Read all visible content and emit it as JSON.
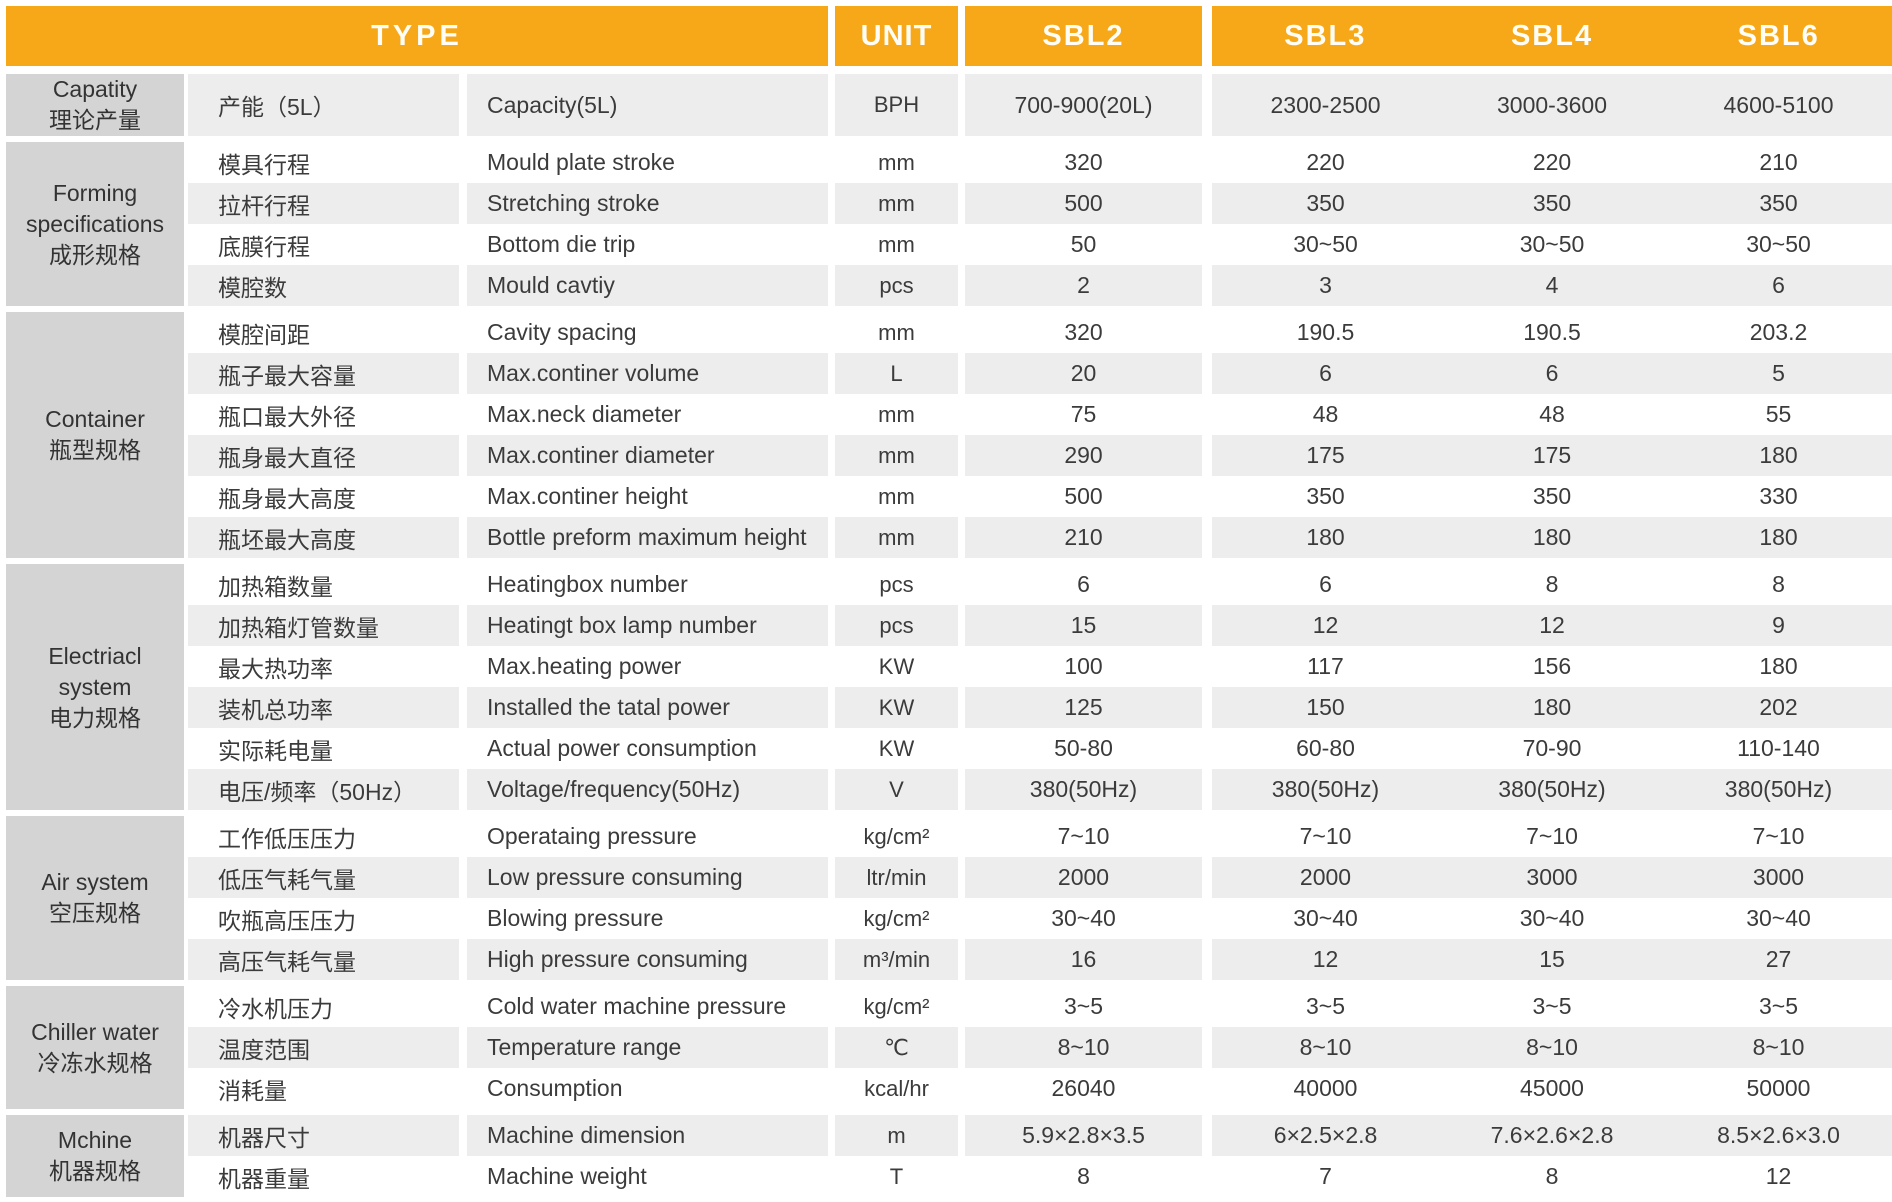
{
  "header": {
    "type": "TYPE",
    "unit": "UNIT",
    "models": [
      "SBL2",
      "SBL3",
      "SBL4",
      "SBL6"
    ]
  },
  "colors": {
    "header_bg": "#f6a819",
    "header_text": "#fffdf6",
    "group_cell_bg": "#d4d4d4",
    "row_shaded_bg": "#ededed",
    "row_plain_bg": "#ffffff",
    "body_text": "#3b3b3b"
  },
  "groups": [
    {
      "label_lines": [
        "Capatity",
        "理论产量"
      ],
      "rows": [
        {
          "zh": "产能（5L）",
          "en": "Capacity(5L)",
          "unit": "BPH",
          "values": [
            "700-900(20L)",
            "2300-2500",
            "3000-3600",
            "4600-5100"
          ]
        }
      ]
    },
    {
      "label_lines": [
        "Forming",
        "specifications",
        "成形规格"
      ],
      "rows": [
        {
          "zh": "模具行程",
          "en": "Mould plate stroke",
          "unit": "mm",
          "values": [
            "320",
            "220",
            "220",
            "210"
          ]
        },
        {
          "zh": "拉杆行程",
          "en": "Stretching stroke",
          "unit": "mm",
          "values": [
            "500",
            "350",
            "350",
            "350"
          ]
        },
        {
          "zh": "底膜行程",
          "en": "Bottom die trip",
          "unit": "mm",
          "values": [
            "50",
            "30~50",
            "30~50",
            "30~50"
          ]
        },
        {
          "zh": "模腔数",
          "en": "Mould cavtiy",
          "unit": "pcs",
          "values": [
            "2",
            "3",
            "4",
            "6"
          ]
        }
      ]
    },
    {
      "label_lines": [
        "Container",
        "瓶型规格"
      ],
      "rows": [
        {
          "zh": "模腔间距",
          "en": "Cavity spacing",
          "unit": "mm",
          "values": [
            "320",
            "190.5",
            "190.5",
            "203.2"
          ]
        },
        {
          "zh": "瓶子最大容量",
          "en": "Max.continer volume",
          "unit": "L",
          "values": [
            "20",
            "6",
            "6",
            "5"
          ]
        },
        {
          "zh": "瓶口最大外径",
          "en": "Max.neck diameter",
          "unit": "mm",
          "values": [
            "75",
            "48",
            "48",
            "55"
          ]
        },
        {
          "zh": "瓶身最大直径",
          "en": "Max.continer diameter",
          "unit": "mm",
          "values": [
            "290",
            "175",
            "175",
            "180"
          ]
        },
        {
          "zh": "瓶身最大高度",
          "en": "Max.continer height",
          "unit": "mm",
          "values": [
            "500",
            "350",
            "350",
            "330"
          ]
        },
        {
          "zh": "瓶坯最大高度",
          "en": "Bottle preform maximum height",
          "unit": "mm",
          "values": [
            "210",
            "180",
            "180",
            "180"
          ]
        }
      ]
    },
    {
      "label_lines": [
        "Electriacl",
        "system",
        "电力规格"
      ],
      "rows": [
        {
          "zh": "加热箱数量",
          "en": "Heatingbox number",
          "unit": "pcs",
          "values": [
            "6",
            "6",
            "8",
            "8"
          ]
        },
        {
          "zh": "加热箱灯管数量",
          "en": "Heatingt box lamp number",
          "unit": "pcs",
          "values": [
            "15",
            "12",
            "12",
            "9"
          ]
        },
        {
          "zh": "最大热功率",
          "en": "Max.heating power",
          "unit": "KW",
          "values": [
            "100",
            "117",
            "156",
            "180"
          ]
        },
        {
          "zh": "装机总功率",
          "en": "Installed the tatal power",
          "unit": "KW",
          "values": [
            "125",
            "150",
            "180",
            "202"
          ]
        },
        {
          "zh": "实际耗电量",
          "en": "Actual power consumption",
          "unit": "KW",
          "values": [
            "50-80",
            "60-80",
            "70-90",
            "110-140"
          ]
        },
        {
          "zh": "电压/频率（50Hz）",
          "en": "Voltage/frequency(50Hz)",
          "unit": "V",
          "values": [
            "380(50Hz)",
            "380(50Hz)",
            "380(50Hz)",
            "380(50Hz)"
          ]
        }
      ]
    },
    {
      "label_lines": [
        "Air system",
        "空压规格"
      ],
      "rows": [
        {
          "zh": "工作低压压力",
          "en": "Operataing pressure",
          "unit": "kg/cm²",
          "values": [
            "7~10",
            "7~10",
            "7~10",
            "7~10"
          ]
        },
        {
          "zh": "低压气耗气量",
          "en": "Low pressure consuming",
          "unit": "ltr/min",
          "values": [
            "2000",
            "2000",
            "3000",
            "3000"
          ]
        },
        {
          "zh": "吹瓶高压压力",
          "en": "Blowing pressure",
          "unit": "kg/cm²",
          "values": [
            "30~40",
            "30~40",
            "30~40",
            "30~40"
          ]
        },
        {
          "zh": "高压气耗气量",
          "en": "High pressure consuming",
          "unit": "m³/min",
          "values": [
            "16",
            "12",
            "15",
            "27"
          ]
        }
      ]
    },
    {
      "label_lines": [
        "Chiller water",
        "冷冻水规格"
      ],
      "rows": [
        {
          "zh": "冷水机压力",
          "en": "Cold water machine pressure",
          "unit": "kg/cm²",
          "values": [
            "3~5",
            "3~5",
            "3~5",
            "3~5"
          ]
        },
        {
          "zh": "温度范围",
          "en": "Temperature range",
          "unit": "℃",
          "values": [
            "8~10",
            "8~10",
            "8~10",
            "8~10"
          ]
        },
        {
          "zh": "消耗量",
          "en": "Consumption",
          "unit": "kcal/hr",
          "values": [
            "26040",
            "40000",
            "45000",
            "50000"
          ]
        }
      ]
    },
    {
      "label_lines": [
        "Mchine",
        "机器规格"
      ],
      "rows": [
        {
          "zh": "机器尺寸",
          "en": "Machine dimension",
          "unit": "m",
          "values": [
            "5.9×2.8×3.5",
            "6×2.5×2.8",
            "7.6×2.6×2.8",
            "8.5×2.6×3.0"
          ]
        },
        {
          "zh": "机器重量",
          "en": "Machine weight",
          "unit": "T",
          "values": [
            "8",
            "7",
            "8",
            "12"
          ]
        }
      ]
    }
  ]
}
